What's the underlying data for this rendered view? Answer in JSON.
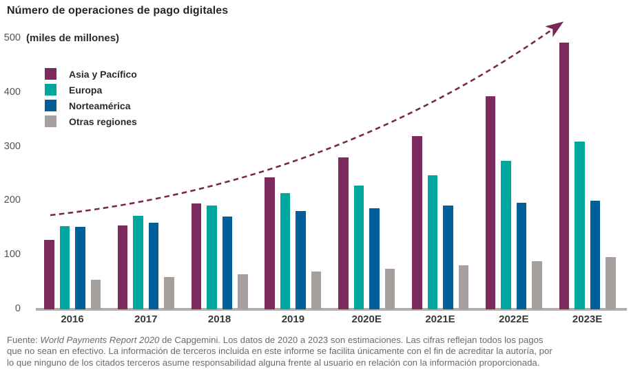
{
  "title": "Número de operaciones de pago digitales",
  "unit_label": "(miles de millones)",
  "legend": [
    {
      "label": "Asia y Pacífico",
      "color": "#7d2a5c"
    },
    {
      "label": "Europa",
      "color": "#00a79e"
    },
    {
      "label": "Norteamérica",
      "color": "#015f9a"
    },
    {
      "label": "Otras regiones",
      "color": "#a5a09d"
    }
  ],
  "colors": {
    "axis_line": "#b2aeac",
    "trend_arrow": "#7a2556",
    "title_text": "#262626",
    "footer_text": "#6b6b6b"
  },
  "chart_data": {
    "type": "bar",
    "title": "Número de operaciones de pago digitales",
    "ylabel": "(miles de millones)",
    "xlabel": "",
    "categories": [
      "2016",
      "2017",
      "2018",
      "2019",
      "2020E",
      "2021E",
      "2022E",
      "2023E"
    ],
    "series": [
      {
        "name": "Asia y Pacífico",
        "color": "#7d2a5c",
        "values": [
          128,
          155,
          196,
          244,
          280,
          320,
          394,
          492
        ]
      },
      {
        "name": "Europa",
        "color": "#00a79e",
        "values": [
          154,
          173,
          192,
          215,
          228,
          248,
          274,
          310
        ]
      },
      {
        "name": "Norteamérica",
        "color": "#015f9a",
        "values": [
          152,
          160,
          171,
          181,
          187,
          192,
          197,
          200
        ]
      },
      {
        "name": "Otras regiones",
        "color": "#a5a09d",
        "values": [
          55,
          60,
          65,
          70,
          75,
          81,
          89,
          96
        ]
      }
    ],
    "y_ticks": [
      0,
      100,
      200,
      300,
      400,
      500
    ],
    "ylim": [
      0,
      500
    ],
    "grid": false,
    "legend_position": "upper-left",
    "annotations": [
      "dashed upward exponential trend arrow from 2016 to 2023E"
    ]
  },
  "footer": {
    "lines": [
      {
        "prefix": "Fuente: ",
        "italic": "World Payments Report 2020",
        "text": " de Capgemini. Los datos de 2020 a 2023 son estimaciones. Las cifras reflejan todos los pagos"
      },
      {
        "text": "que no sean en efectivo. La información de terceros incluida en este informe se facilita únicamente con el fin de acreditar la autoría, por"
      },
      {
        "text": "lo que ninguno de los citados terceros asume responsabilidad alguna frente al usuario en relación con la información proporcionada."
      }
    ]
  }
}
